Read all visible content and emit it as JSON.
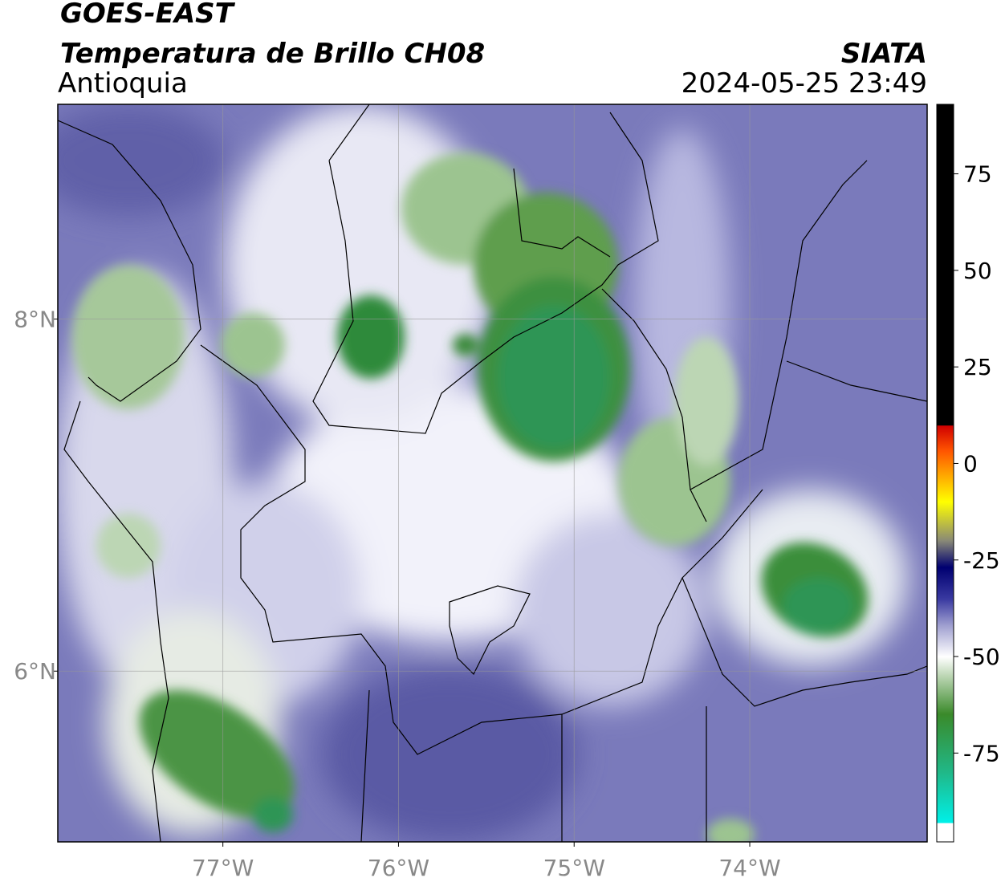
{
  "header": {
    "title": "GOES-EAST",
    "subtitle": "Temperatura de Brillo CH08",
    "region": "Antioquia",
    "source": "SIATA",
    "datetime": "2024-05-25 23:49"
  },
  "map": {
    "xlim": [
      -77.94,
      -72.99
    ],
    "ylim": [
      5.03,
      9.22
    ],
    "xticks": [
      {
        "value": -77,
        "label": "77°W"
      },
      {
        "value": -76,
        "label": "76°W"
      },
      {
        "value": -75,
        "label": "75°W"
      },
      {
        "value": -74,
        "label": "74°W"
      }
    ],
    "yticks": [
      {
        "value": 8,
        "label": "8°N"
      },
      {
        "value": 6,
        "label": "6°N"
      }
    ],
    "grid": true
  },
  "colorbar": {
    "lim": [
      -98,
      93
    ],
    "ticks": [
      75,
      50,
      25,
      0,
      -25,
      -50,
      -75
    ]
  }
}
